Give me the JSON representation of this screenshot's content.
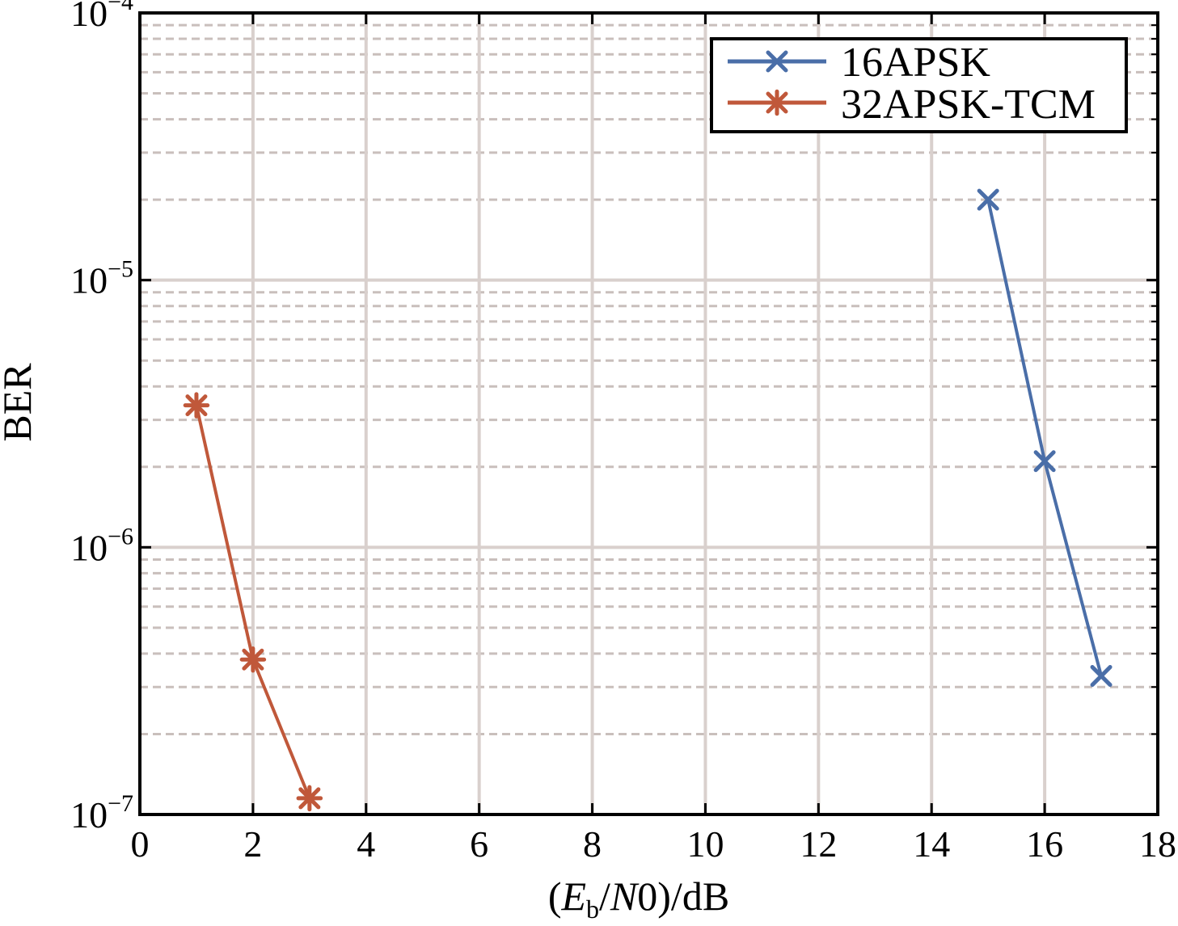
{
  "chart_data": {
    "type": "line",
    "xlabel": {
      "open": "(",
      "e": "E",
      "sub": "b",
      "slash": "/",
      "n": "N",
      "rest": "0)/dB"
    },
    "ylabel": "BER",
    "xlim": [
      0,
      18
    ],
    "ylim": [
      1e-07,
      0.0001
    ],
    "yscale": "log",
    "xticks": [
      0,
      2,
      4,
      6,
      8,
      10,
      12,
      14,
      16,
      18
    ],
    "yticks": [
      {
        "value": 0.0001,
        "base": "10",
        "exp": "−4"
      },
      {
        "value": 1e-05,
        "base": "10",
        "exp": "−5"
      },
      {
        "value": 1e-06,
        "base": "10",
        "exp": "−6"
      },
      {
        "value": 1e-07,
        "base": "10",
        "exp": "−7"
      }
    ],
    "grid": true,
    "legend_position": "top-right",
    "series": [
      {
        "name": "16APSK",
        "color": "#4a6ea8",
        "marker": "x",
        "x": [
          15,
          16,
          17
        ],
        "y": [
          2e-05,
          2.1e-06,
          3.3e-07
        ]
      },
      {
        "name": "32APSK-TCM",
        "color": "#c0583a",
        "marker": "asterisk",
        "x": [
          1,
          2,
          3
        ],
        "y": [
          3.4e-06,
          3.8e-07,
          1.15e-07
        ]
      }
    ]
  }
}
